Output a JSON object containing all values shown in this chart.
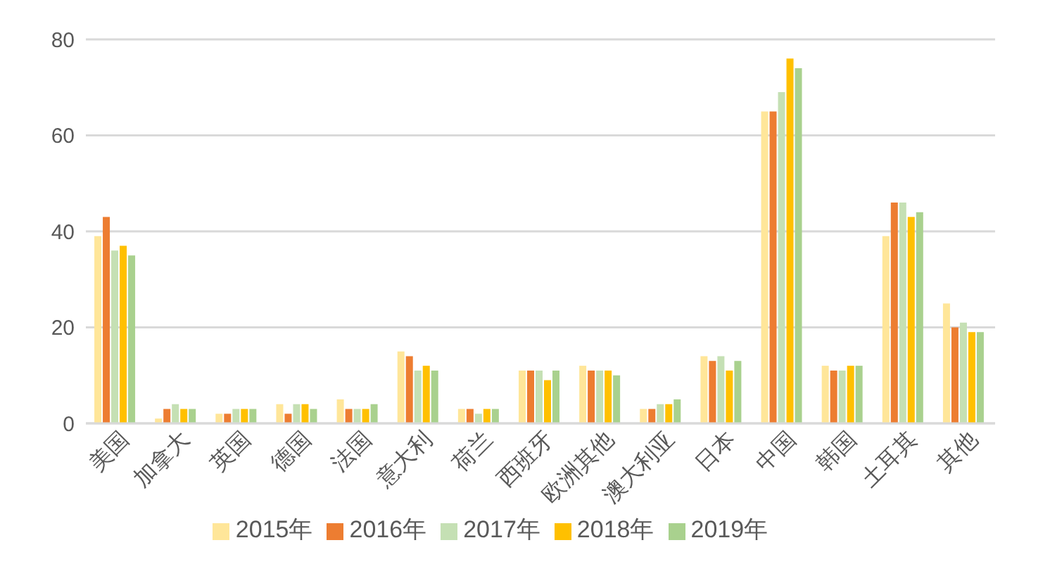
{
  "chart_data": {
    "type": "bar",
    "categories": [
      "美国",
      "加拿大",
      "英国",
      "德国",
      "法国",
      "意大利",
      "荷兰",
      "西班牙",
      "欧洲其他",
      "澳大利亚",
      "日本",
      "中国",
      "韩国",
      "土耳其",
      "其他"
    ],
    "series": [
      {
        "name": "2015年",
        "color": "#ffe699",
        "values": [
          39,
          1,
          2,
          4,
          5,
          15,
          3,
          11,
          12,
          3,
          14,
          65,
          12,
          39,
          25
        ]
      },
      {
        "name": "2016年",
        "color": "#ed7d31",
        "values": [
          43,
          3,
          2,
          2,
          3,
          14,
          3,
          11,
          11,
          3,
          13,
          65,
          11,
          46,
          20
        ]
      },
      {
        "name": "2017年",
        "color": "#c5e0b4",
        "values": [
          36,
          4,
          3,
          4,
          3,
          11,
          2,
          11,
          11,
          4,
          14,
          69,
          11,
          46,
          21
        ]
      },
      {
        "name": "2018年",
        "color": "#ffc000",
        "values": [
          37,
          3,
          3,
          4,
          3,
          12,
          3,
          9,
          11,
          4,
          11,
          76,
          12,
          43,
          19
        ]
      },
      {
        "name": "2019年",
        "color": "#a9d18e",
        "values": [
          35,
          3,
          3,
          3,
          4,
          11,
          3,
          11,
          10,
          5,
          13,
          74,
          12,
          44,
          19
        ]
      }
    ],
    "ylim": [
      0,
      80
    ],
    "yticks": [
      0,
      20,
      40,
      60,
      80
    ],
    "grid": "y",
    "legend": "bottom"
  }
}
